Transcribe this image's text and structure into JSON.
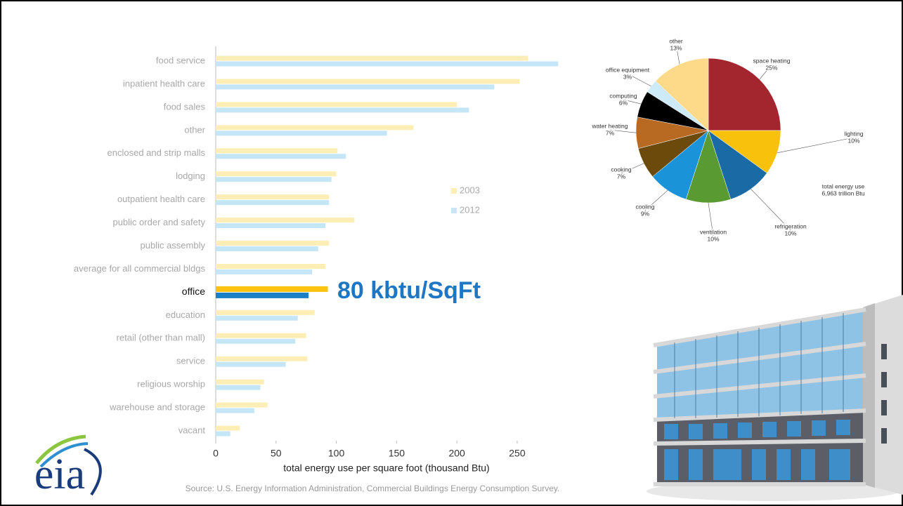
{
  "logo": "eia",
  "source": "Source: U.S. Energy Information Administration, Commercial Buildings Energy Consumption Survey.",
  "chart_data": [
    {
      "type": "hbar",
      "categories": [
        "food service",
        "inpatient health care",
        "food sales",
        "other",
        "enclosed and strip malls",
        "lodging",
        "outpatient health care",
        "public order and safety",
        "public assembly",
        "average for all commercial bldgs",
        "office",
        "education",
        "retail (other than mall)",
        "service",
        "religious worship",
        "warehouse and storage",
        "vacant"
      ],
      "series": [
        {
          "name": "2003",
          "color": "#fdeeb5",
          "highlight_color": "#fdc20f",
          "values": [
            259,
            252,
            200,
            164,
            101,
            100,
            94,
            115,
            94,
            91,
            93,
            82,
            75,
            76,
            40,
            43,
            20
          ]
        },
        {
          "name": "2012",
          "color": "#c5e6f7",
          "highlight_color": "#1a7fc4",
          "values": [
            284,
            231,
            210,
            142,
            108,
            96,
            94,
            91,
            85,
            80,
            77,
            68,
            66,
            58,
            37,
            32,
            12
          ]
        }
      ],
      "highlight_index": 10,
      "xlabel": "total energy use per square foot (thousand Btu)",
      "xlim": [
        0,
        285
      ],
      "xticks": [
        0,
        50,
        100,
        150,
        200,
        250
      ],
      "annotation": "80 kbtu/SqFt"
    },
    {
      "type": "pie",
      "categories": [
        "space heating",
        "lighting",
        "refrigeration",
        "ventilation",
        "cooling",
        "cooking",
        "water heating",
        "computing",
        "office equipment",
        "other"
      ],
      "values": [
        25,
        10,
        10,
        10,
        9,
        7,
        7,
        6,
        3,
        13
      ],
      "value_labels": [
        "25%",
        "10%",
        "10%",
        "10%",
        "9%",
        "7%",
        "7%",
        "6%",
        "3%",
        "13%"
      ],
      "colors": [
        "#a3262e",
        "#f8c20c",
        "#1a6aa6",
        "#5a9a32",
        "#1b93d9",
        "#6b4a0c",
        "#b96a22",
        "#000000",
        "#cdeaf8",
        "#fdd98a"
      ],
      "note": [
        "total energy use",
        "6,963 trillion Btu"
      ]
    }
  ]
}
